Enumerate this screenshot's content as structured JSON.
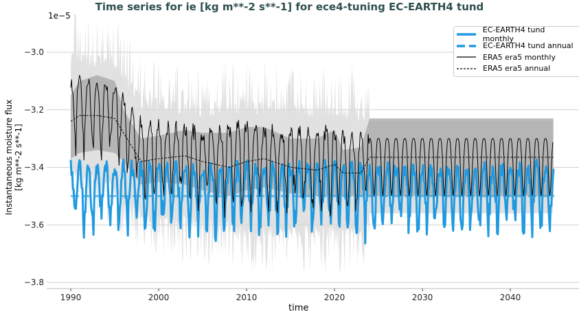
{
  "chart_data": {
    "type": "line",
    "title": "Time series for ie [kg m**-2 s**-1] for ece4-tuning EC-EARTH4 tund",
    "xlabel": "time",
    "ylabel_lines": [
      "Instantaneous moisture flux",
      "[kg m**-2 s**-1]"
    ],
    "y_offset_label": "1e−5",
    "xlim": [
      1987.3,
      2048
    ],
    "ylim": [
      -3.82,
      -2.88
    ],
    "x_ticks": [
      "1990",
      "2000",
      "2010",
      "2020",
      "2030",
      "2040"
    ],
    "y_ticks": [
      "−3.0",
      "−3.2",
      "−3.4",
      "−3.6",
      "−3.8"
    ],
    "y_tick_values": [
      -3.0,
      -3.2,
      -3.4,
      -3.6,
      -3.8
    ],
    "grid": "horizontal",
    "legend_position": "top-right",
    "series": [
      {
        "name": "EC-EARTH4 tund monthly",
        "color": "#1f9ae0",
        "style": "solid-thick",
        "x_range": [
          1990,
          2045
        ],
        "mean": -3.5,
        "seasonal_min": -3.62,
        "seasonal_max": -3.4
      },
      {
        "name": "EC-EARTH4 tund annual",
        "color": "#1f9ae0",
        "style": "dashed-thick",
        "x": [
          1990,
          2045
        ],
        "y": [
          -3.5,
          -3.5
        ]
      },
      {
        "name": "ERA5 era5 monthly",
        "color": "#000000",
        "style": "solid",
        "x": [
          1990,
          1995,
          1998,
          2005,
          2010,
          2015,
          2020,
          2023,
          2024,
          2044.9
        ],
        "upper": [
          -3.1,
          -3.12,
          -3.25,
          -3.28,
          -3.26,
          -3.28,
          -3.28,
          -3.3,
          -3.3,
          -3.3
        ],
        "lower": [
          -3.35,
          -3.4,
          -3.5,
          -3.52,
          -3.55,
          -3.55,
          -3.55,
          -3.55,
          -3.5,
          -3.5
        ],
        "band_color": "#d9d9d9"
      },
      {
        "name": "ERA5 era5 annual",
        "color": "#000000",
        "style": "dashed",
        "x": [
          1990,
          1991,
          1993,
          1995,
          1996,
          1997,
          1998,
          2000,
          2003,
          2005,
          2008,
          2010,
          2012,
          2015,
          2018,
          2020,
          2021,
          2023,
          2024,
          2044.9
        ],
        "y": [
          -3.24,
          -3.22,
          -3.22,
          -3.23,
          -3.28,
          -3.33,
          -3.38,
          -3.37,
          -3.36,
          -3.38,
          -3.4,
          -3.38,
          -3.37,
          -3.4,
          -3.41,
          -3.39,
          -3.42,
          -3.42,
          -3.365,
          -3.365
        ],
        "band_upper": [
          -3.15,
          -3.1,
          -3.08,
          -3.1,
          -3.2,
          -3.25,
          -3.3,
          -3.29,
          -3.27,
          -3.28,
          -3.28,
          -3.26,
          -3.26,
          -3.3,
          -3.3,
          -3.27,
          -3.34,
          -3.33,
          -3.23,
          -3.23
        ],
        "band_lower": [
          -3.37,
          -3.35,
          -3.34,
          -3.35,
          -3.38,
          -3.42,
          -3.46,
          -3.45,
          -3.46,
          -3.48,
          -3.5,
          -3.48,
          -3.47,
          -3.49,
          -3.5,
          -3.5,
          -3.5,
          -3.5,
          -3.5,
          -3.5
        ],
        "band_color": "#a6a6a6"
      }
    ]
  }
}
